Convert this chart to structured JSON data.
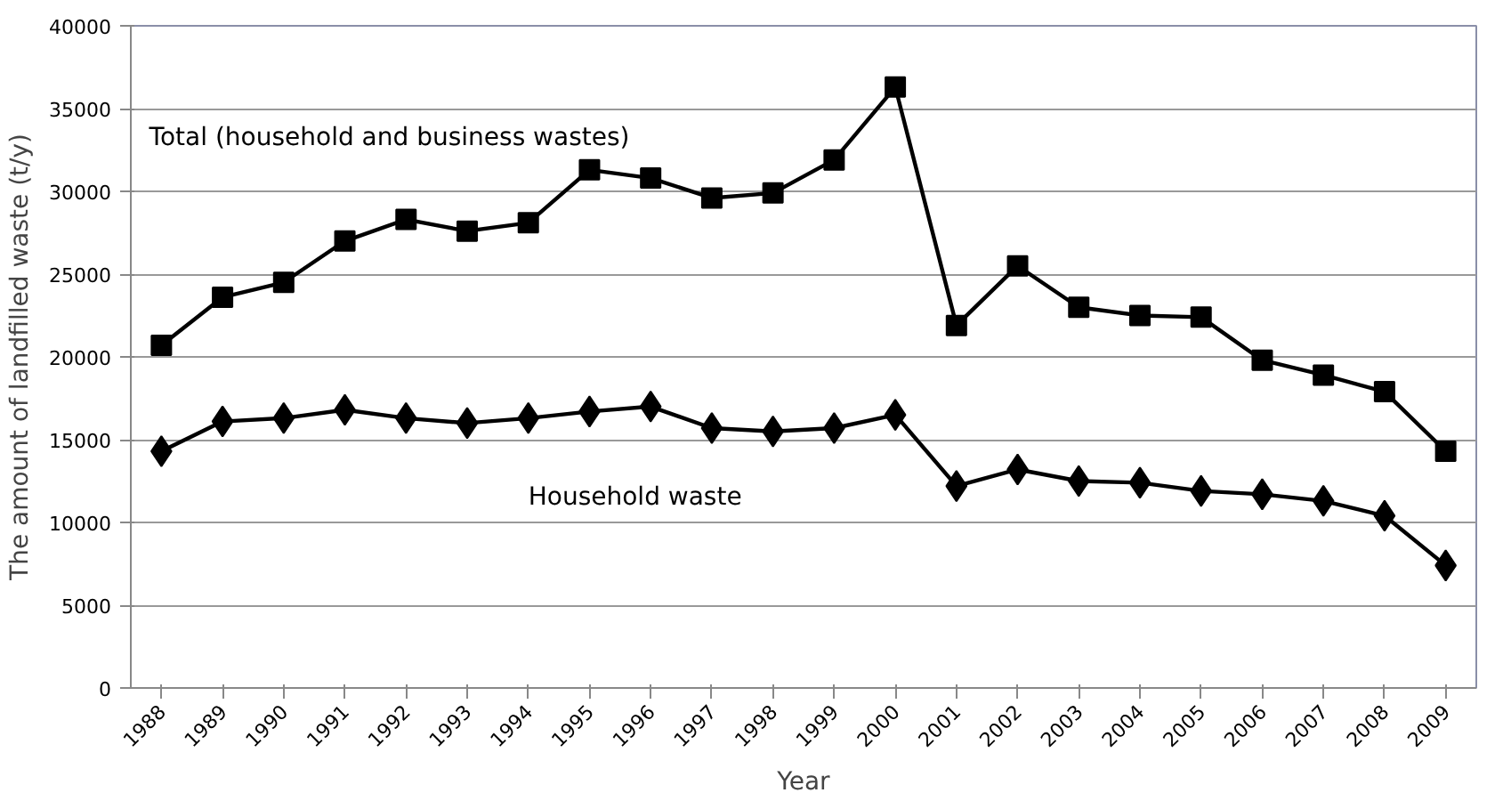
{
  "chart_data": {
    "type": "line",
    "xlabel": "Year",
    "ylabel": "The amount of landfilled waste (t/y)",
    "categories": [
      "1988",
      "1989",
      "1990",
      "1991",
      "1992",
      "1993",
      "1994",
      "1995",
      "1996",
      "1997",
      "1998",
      "1999",
      "2000",
      "2001",
      "2002",
      "2003",
      "2004",
      "2005",
      "2006",
      "2007",
      "2008",
      "2009"
    ],
    "series": [
      {
        "name": "Total (household and business wastes)",
        "color": "#000000",
        "marker": "square",
        "values": [
          20700,
          23600,
          24500,
          27000,
          28300,
          27600,
          28100,
          31300,
          30800,
          29600,
          29900,
          31900,
          36300,
          21900,
          25500,
          23000,
          22500,
          22400,
          19800,
          18900,
          17900,
          14300
        ]
      },
      {
        "name": "Household waste",
        "color": "#000000",
        "marker": "diamond",
        "values": [
          14300,
          16100,
          16300,
          16800,
          16300,
          16000,
          16300,
          16700,
          17000,
          15700,
          15500,
          15700,
          16500,
          12200,
          13200,
          12500,
          12400,
          11900,
          11700,
          11300,
          10400,
          7400
        ]
      }
    ],
    "ylim": [
      0,
      40000
    ],
    "yticks": [
      0,
      5000,
      10000,
      15000,
      20000,
      25000,
      30000,
      35000,
      40000
    ],
    "grid": "y",
    "line_style": "solid"
  }
}
